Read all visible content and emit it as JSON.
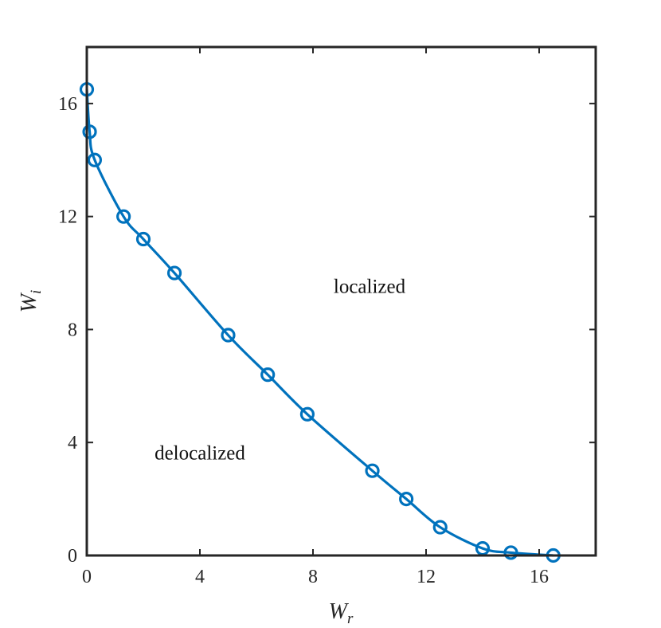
{
  "chart_data": {
    "type": "line",
    "title": "",
    "xlabel": {
      "main": "W",
      "sub": "r"
    },
    "ylabel": {
      "main": "W",
      "sub": "i"
    },
    "xlim": [
      0,
      18
    ],
    "ylim": [
      0,
      18
    ],
    "xticks": [
      0,
      4,
      8,
      12,
      16
    ],
    "yticks": [
      0,
      4,
      8,
      12,
      16
    ],
    "grid": false,
    "legend": "none",
    "series": [
      {
        "color": "#0072BD",
        "marker": "circle",
        "x": [
          0.0,
          0.1,
          0.28,
          1.3,
          2.0,
          3.1,
          5.0,
          6.4,
          7.8,
          10.1,
          11.3,
          12.5,
          14.0,
          15.0,
          16.5
        ],
        "y": [
          16.5,
          15.0,
          14.0,
          12.0,
          11.2,
          10.0,
          7.8,
          6.4,
          5.0,
          3.0,
          2.0,
          1.0,
          0.25,
          0.1,
          0.0
        ]
      }
    ],
    "annotations": [
      {
        "text": "localized",
        "x": 10.0,
        "y": 9.3
      },
      {
        "text": "delocalized",
        "x": 4.0,
        "y": 3.4
      }
    ]
  }
}
